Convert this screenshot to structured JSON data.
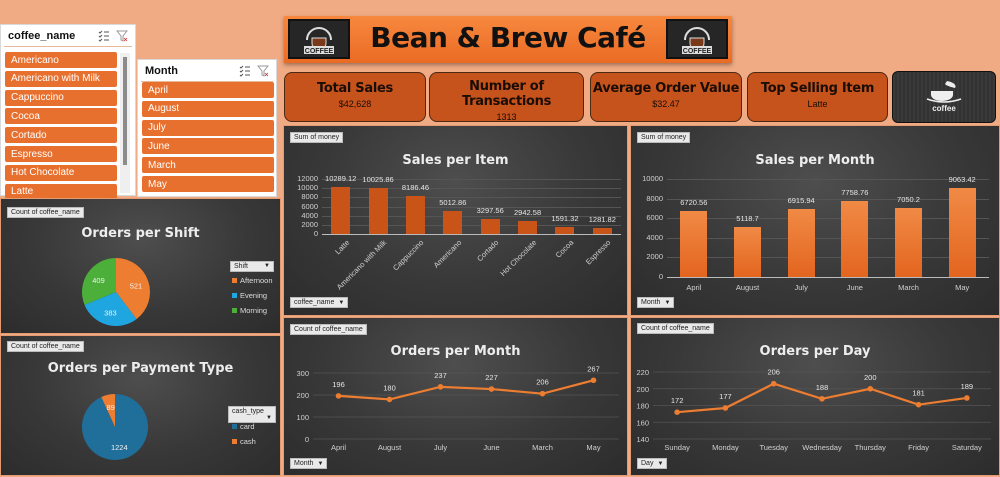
{
  "banner": {
    "title": "Bean & Brew Café",
    "logo_text": "COFFEE"
  },
  "kpis": [
    {
      "label": "Total Sales",
      "value": "$42,628"
    },
    {
      "label": "Number of Transactions",
      "value": "1313"
    },
    {
      "label": "Average Order Value",
      "value": "$32.47"
    },
    {
      "label": "Top Selling Item",
      "value": "Latte"
    }
  ],
  "brand_card": {
    "text": "coffee"
  },
  "slicers": {
    "coffee_name": {
      "title": "coffee_name",
      "items": [
        "Americano",
        "Americano with Milk",
        "Cappuccino",
        "Cocoa",
        "Cortado",
        "Espresso",
        "Hot Chocolate",
        "Latte"
      ]
    },
    "month": {
      "title": "Month",
      "items": [
        "April",
        "August",
        "July",
        "June",
        "March",
        "May"
      ]
    }
  },
  "panels": {
    "sales_per_item": {
      "value_field": "Sum of money",
      "axis_field": "coffee_name"
    },
    "sales_per_month": {
      "value_field": "Sum of money",
      "axis_field": "Month"
    },
    "orders_per_shift": {
      "value_field": "Count of coffee_name",
      "legend_field": "Shift"
    },
    "orders_per_payment": {
      "value_field": "Count of coffee_name",
      "legend_field": "cash_type"
    },
    "orders_per_month": {
      "value_field": "Count of coffee_name",
      "axis_field": "Month"
    },
    "orders_per_day": {
      "value_field": "Count of coffee_name",
      "axis_field": "Day"
    }
  },
  "colors": {
    "accent": "#e8702f",
    "kpi_bg": "#c6521c",
    "page_bg": "#f0aa84",
    "panel_bg": "#3a3a3a",
    "shift_afternoon": "#ed7d31",
    "shift_evening": "#1fa5e0",
    "shift_morning": "#4caf3a",
    "pay_card": "#1f6f9a",
    "pay_cash": "#ed7d31"
  },
  "chart_data": [
    {
      "type": "bar",
      "title": "Sales per Item",
      "categories": [
        "Latte",
        "Americano with Milk",
        "Cappuccino",
        "Americano",
        "Cortado",
        "Hot Chocolate",
        "Cocoa",
        "Espresso"
      ],
      "values": [
        10289.12,
        10025.86,
        8186.46,
        5012.86,
        3297.56,
        2942.58,
        1591.32,
        1281.82
      ],
      "yticks": [
        0,
        2000,
        4000,
        6000,
        8000,
        10000,
        12000
      ],
      "ylim": [
        0,
        12000
      ],
      "xlabel": "",
      "ylabel": ""
    },
    {
      "type": "bar",
      "title": "Sales per Month",
      "categories": [
        "April",
        "August",
        "July",
        "June",
        "March",
        "May"
      ],
      "values": [
        6720.56,
        5118.7,
        6915.94,
        7758.76,
        7050.2,
        9063.42
      ],
      "yticks": [
        0,
        2000,
        4000,
        6000,
        8000,
        10000
      ],
      "ylim": [
        0,
        10000
      ]
    },
    {
      "type": "pie",
      "title": "Orders per Shift",
      "categories": [
        "Afternoon",
        "Evening",
        "Morning"
      ],
      "values": [
        521,
        383,
        409
      ]
    },
    {
      "type": "pie",
      "title": "Orders per Payment Type",
      "categories": [
        "card",
        "cash"
      ],
      "values": [
        1224,
        89
      ]
    },
    {
      "type": "line",
      "title": "Orders per Month",
      "categories": [
        "April",
        "August",
        "July",
        "June",
        "March",
        "May"
      ],
      "values": [
        196,
        180,
        237,
        227,
        206,
        267
      ],
      "yticks": [
        0,
        100,
        200,
        300
      ],
      "ylim": [
        0,
        300
      ]
    },
    {
      "type": "line",
      "title": "Orders per Day",
      "categories": [
        "Sunday",
        "Monday",
        "Tuesday",
        "Wednesday",
        "Thursday",
        "Friday",
        "Saturday"
      ],
      "values": [
        172,
        177,
        206,
        188,
        200,
        181,
        189
      ],
      "yticks": [
        140,
        160,
        180,
        200,
        220
      ],
      "ylim": [
        140,
        220
      ]
    }
  ]
}
